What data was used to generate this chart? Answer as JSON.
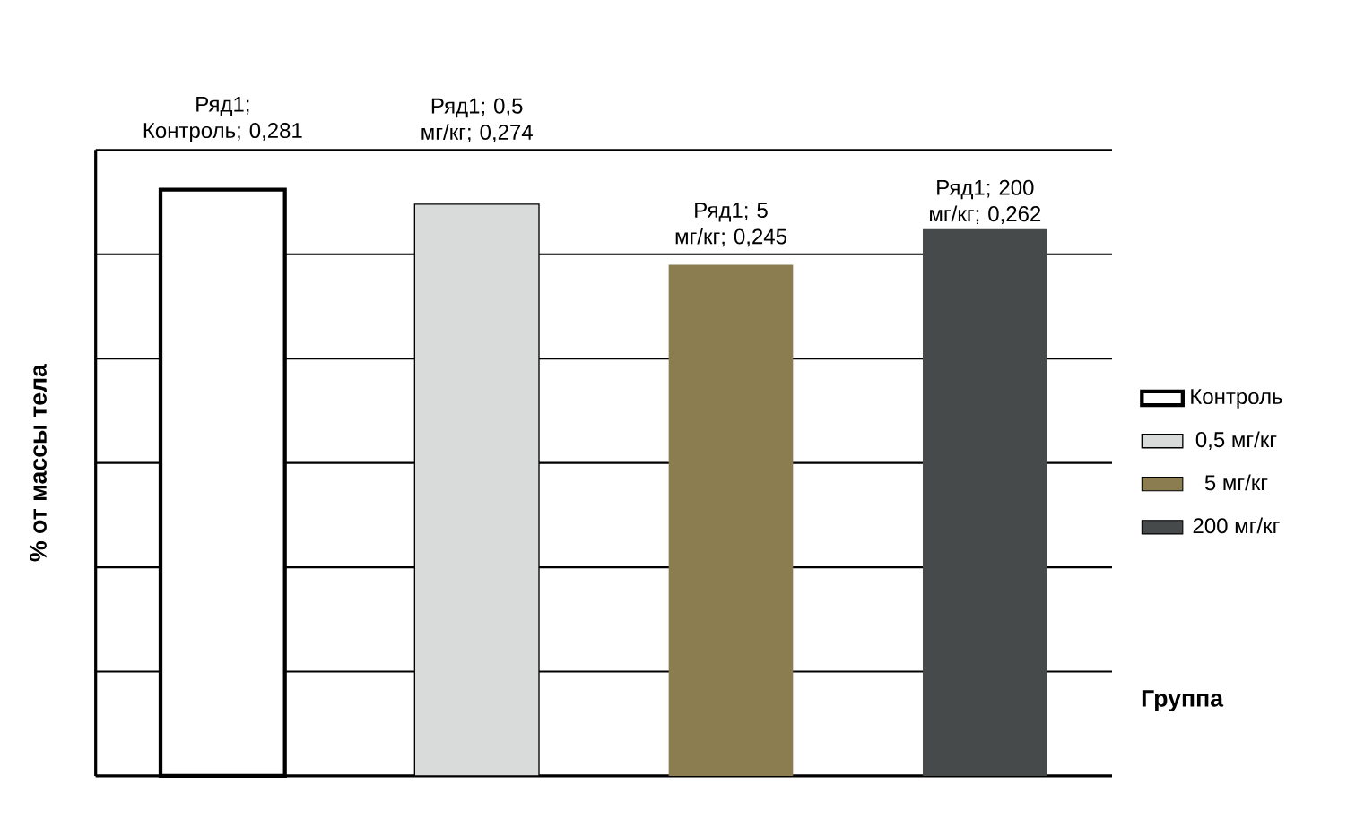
{
  "chart_data": {
    "type": "bar",
    "xlabel": "Группа",
    "ylabel": "% от массы тела",
    "categories": [
      null,
      null,
      null,
      null
    ],
    "stacked": true,
    "series": [
      {
        "name": "Контроль",
        "color": "#ffffff",
        "values": [
          0.281,
          null,
          null,
          null
        ],
        "value_labels": [
          "Ряд1; Контроль; 0,281",
          null,
          null,
          null
        ]
      },
      {
        "name": "0,5 мг/кг",
        "color": "#d9dada",
        "values": [
          null,
          0.274,
          null,
          null
        ],
        "value_labels": [
          null,
          "Ряд1; 0,5 мг/кг; 0,274",
          null,
          null
        ]
      },
      {
        "name": "5 мг/кг",
        "color": "#8b7d4f",
        "values": [
          null,
          null,
          0.245,
          null
        ],
        "value_labels": [
          null,
          null,
          "Ряд1; 5 мг/кг; 0,245",
          null
        ]
      },
      {
        "name": "200 мг/кг",
        "color": "#464a4b",
        "values": [
          null,
          null,
          null,
          0.262
        ],
        "value_labels": [
          null,
          null,
          null,
          "Ряд1; 200 мг/кг; 0,262"
        ]
      }
    ],
    "ylim": [
      0,
      0.3
    ],
    "yticks": [
      {
        "value": 0,
        "label": null
      },
      {
        "value": 0.05,
        "label": null
      },
      {
        "value": 0.1,
        "label": null
      },
      {
        "value": 0.15,
        "label": null
      },
      {
        "value": 0.2,
        "label": null
      },
      {
        "value": 0.25,
        "label": null
      },
      {
        "value": 0.3,
        "label": null
      }
    ],
    "grid": "y",
    "legend": "right"
  }
}
